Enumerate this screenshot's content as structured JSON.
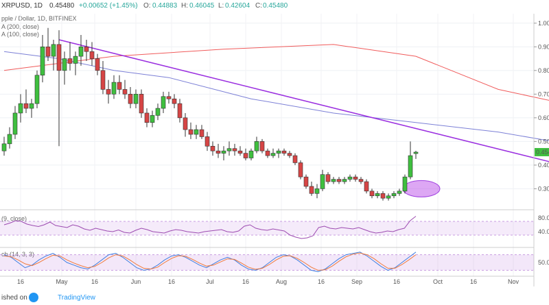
{
  "header": {
    "symbol": "XRPUSD, 1D",
    "price_open": "0.45480",
    "change": "+0.00652 (+1.45%)",
    "o_label": "O:",
    "o_value": "0.44883",
    "h_label": "H:",
    "h_value": "0.46045",
    "l_label": "L:",
    "l_value": "0.42604",
    "c_label": "C:",
    "c_value": "0.45480",
    "legend_title": "pple / Dollar, 1D, BITFINEX",
    "legend_ma200": "A (200, close)",
    "legend_ma100": "A (100, close)",
    "rsi_label": "(9, close)",
    "stoch_label": "ch (14, 3, 3)"
  },
  "footer": {
    "published": "ished on",
    "brand": "TradingView"
  },
  "chart_data": {
    "type": "candlestick",
    "price_scale": {
      "ticks": [
        "1.000",
        "0.900",
        "0.800",
        "0.700",
        "0.600",
        "0.500",
        "0.400",
        "0.300"
      ],
      "last_label": "0.454"
    },
    "x_ticks": [
      "16",
      "May",
      "16",
      "Jun",
      "16",
      "Jul",
      "16",
      "Aug",
      "16",
      "Sep",
      "16",
      "Oct",
      "16",
      "Nov"
    ],
    "candles": [
      [
        0.46,
        0.52,
        0.44,
        0.49
      ],
      [
        0.49,
        0.56,
        0.47,
        0.53
      ],
      [
        0.53,
        0.65,
        0.51,
        0.62
      ],
      [
        0.62,
        0.7,
        0.58,
        0.66
      ],
      [
        0.66,
        0.72,
        0.62,
        0.64
      ],
      [
        0.64,
        0.68,
        0.6,
        0.66
      ],
      [
        0.66,
        0.8,
        0.64,
        0.78
      ],
      [
        0.78,
        0.95,
        0.75,
        0.9
      ],
      [
        0.9,
        0.98,
        0.84,
        0.86
      ],
      [
        0.86,
        0.93,
        0.8,
        0.91
      ],
      [
        0.91,
        0.97,
        0.48,
        0.8
      ],
      [
        0.8,
        0.88,
        0.74,
        0.85
      ],
      [
        0.85,
        0.92,
        0.8,
        0.83
      ],
      [
        0.83,
        0.88,
        0.78,
        0.86
      ],
      [
        0.86,
        0.95,
        0.82,
        0.9
      ],
      [
        0.9,
        0.93,
        0.84,
        0.88
      ],
      [
        0.88,
        0.92,
        0.82,
        0.85
      ],
      [
        0.85,
        0.87,
        0.78,
        0.8
      ],
      [
        0.8,
        0.84,
        0.7,
        0.72
      ],
      [
        0.72,
        0.76,
        0.66,
        0.7
      ],
      [
        0.7,
        0.78,
        0.68,
        0.75
      ],
      [
        0.75,
        0.78,
        0.7,
        0.72
      ],
      [
        0.72,
        0.76,
        0.68,
        0.7
      ],
      [
        0.7,
        0.73,
        0.64,
        0.66
      ],
      [
        0.66,
        0.72,
        0.64,
        0.7
      ],
      [
        0.7,
        0.72,
        0.6,
        0.62
      ],
      [
        0.62,
        0.64,
        0.56,
        0.58
      ],
      [
        0.58,
        0.63,
        0.56,
        0.61
      ],
      [
        0.61,
        0.66,
        0.59,
        0.64
      ],
      [
        0.64,
        0.71,
        0.62,
        0.69
      ],
      [
        0.69,
        0.71,
        0.66,
        0.68
      ],
      [
        0.68,
        0.7,
        0.64,
        0.66
      ],
      [
        0.66,
        0.68,
        0.58,
        0.6
      ],
      [
        0.6,
        0.62,
        0.52,
        0.55
      ],
      [
        0.55,
        0.58,
        0.51,
        0.53
      ],
      [
        0.53,
        0.57,
        0.51,
        0.55
      ],
      [
        0.55,
        0.57,
        0.51,
        0.52
      ],
      [
        0.52,
        0.54,
        0.46,
        0.48
      ],
      [
        0.48,
        0.5,
        0.44,
        0.46
      ],
      [
        0.46,
        0.49,
        0.43,
        0.45
      ],
      [
        0.45,
        0.48,
        0.42,
        0.46
      ],
      [
        0.46,
        0.5,
        0.44,
        0.47
      ],
      [
        0.47,
        0.49,
        0.44,
        0.46
      ],
      [
        0.46,
        0.48,
        0.44,
        0.45
      ],
      [
        0.45,
        0.47,
        0.42,
        0.43
      ],
      [
        0.43,
        0.47,
        0.42,
        0.46
      ],
      [
        0.46,
        0.52,
        0.45,
        0.5
      ],
      [
        0.5,
        0.51,
        0.45,
        0.46
      ],
      [
        0.46,
        0.47,
        0.43,
        0.44
      ],
      [
        0.44,
        0.47,
        0.43,
        0.45
      ],
      [
        0.45,
        0.47,
        0.43,
        0.46
      ],
      [
        0.46,
        0.47,
        0.44,
        0.45
      ],
      [
        0.45,
        0.46,
        0.43,
        0.44
      ],
      [
        0.44,
        0.45,
        0.4,
        0.41
      ],
      [
        0.41,
        0.42,
        0.34,
        0.35
      ],
      [
        0.35,
        0.36,
        0.3,
        0.31
      ],
      [
        0.31,
        0.33,
        0.27,
        0.28
      ],
      [
        0.28,
        0.32,
        0.26,
        0.3
      ],
      [
        0.3,
        0.38,
        0.29,
        0.36
      ],
      [
        0.36,
        0.37,
        0.32,
        0.33
      ],
      [
        0.33,
        0.35,
        0.32,
        0.34
      ],
      [
        0.34,
        0.35,
        0.32,
        0.33
      ],
      [
        0.33,
        0.35,
        0.32,
        0.34
      ],
      [
        0.34,
        0.36,
        0.33,
        0.35
      ],
      [
        0.35,
        0.36,
        0.33,
        0.34
      ],
      [
        0.34,
        0.35,
        0.32,
        0.33
      ],
      [
        0.33,
        0.34,
        0.28,
        0.29
      ],
      [
        0.29,
        0.3,
        0.26,
        0.27
      ],
      [
        0.27,
        0.29,
        0.26,
        0.28
      ],
      [
        0.28,
        0.29,
        0.25,
        0.26
      ],
      [
        0.26,
        0.28,
        0.25,
        0.27
      ],
      [
        0.27,
        0.29,
        0.26,
        0.28
      ],
      [
        0.28,
        0.3,
        0.27,
        0.29
      ],
      [
        0.29,
        0.36,
        0.28,
        0.35
      ],
      [
        0.35,
        0.5,
        0.34,
        0.44
      ],
      [
        0.4488,
        0.4605,
        0.426,
        0.4548
      ]
    ],
    "series": [
      {
        "name": "SMA (200, close)",
        "color": "#f05a5a",
        "x": [
          0,
          20,
          40,
          60,
          75,
          90,
          100,
          110,
          122
        ],
        "y": [
          0.8,
          0.86,
          0.89,
          0.91,
          0.86,
          0.72,
          0.67,
          0.62,
          0.54
        ]
      },
      {
        "name": "SMA (100, close)",
        "color": "#7b7fd6",
        "x": [
          0,
          10,
          20,
          30,
          45,
          60,
          75,
          90,
          100,
          110,
          122
        ],
        "y": [
          0.88,
          0.85,
          0.8,
          0.77,
          0.68,
          0.62,
          0.58,
          0.54,
          0.5,
          0.46,
          0.4
        ]
      }
    ],
    "trendline": {
      "color": "#9b30e0",
      "x": [
        10,
        133
      ],
      "y": [
        0.93,
        0.22
      ]
    },
    "highlights": [
      {
        "x": 76,
        "y": 0.3
      },
      {
        "x": 116,
        "y": 0.28
      }
    ],
    "rsi": {
      "range": [
        0,
        100
      ],
      "ticks": [
        "80.00",
        "40.00"
      ],
      "band": [
        30,
        70
      ],
      "values": [
        60,
        65,
        72,
        70,
        62,
        58,
        55,
        60,
        68,
        58,
        55,
        52,
        60,
        56,
        48,
        44,
        50,
        46,
        42,
        40,
        45,
        38,
        36,
        44,
        50,
        46,
        40,
        38,
        36,
        42,
        46,
        44,
        40,
        38,
        36,
        40,
        42,
        44,
        46,
        40,
        38,
        42,
        56,
        60,
        50,
        46,
        44,
        48,
        45,
        42,
        30,
        24,
        20,
        22,
        28,
        52,
        56,
        50,
        48,
        52,
        50,
        48,
        52,
        46,
        40,
        36,
        38,
        42,
        40,
        46,
        50,
        72,
        85
      ]
    },
    "stochastic": {
      "range": [
        0,
        100
      ],
      "ticks": [
        "50.00"
      ],
      "band": [
        20,
        80
      ],
      "values_k": [
        80,
        70,
        50,
        30,
        40,
        60,
        75,
        85,
        70,
        50,
        40,
        30,
        25,
        40,
        60,
        80,
        85,
        70,
        50,
        30,
        20,
        25,
        40,
        60,
        75,
        80,
        70,
        55,
        40,
        30,
        45,
        60,
        70,
        60,
        40,
        25,
        20,
        30,
        50,
        70,
        80,
        75,
        60,
        40,
        20,
        15,
        25,
        45,
        65,
        80,
        85,
        90,
        75,
        55,
        35,
        20,
        30,
        50,
        70,
        90
      ],
      "values_d": [
        75,
        72,
        60,
        45,
        38,
        50,
        65,
        78,
        75,
        60,
        48,
        38,
        30,
        35,
        50,
        68,
        80,
        75,
        60,
        42,
        28,
        25,
        32,
        50,
        66,
        76,
        74,
        62,
        48,
        36,
        40,
        52,
        64,
        62,
        48,
        32,
        24,
        28,
        42,
        60,
        74,
        76,
        66,
        50,
        32,
        20,
        22,
        36,
        55,
        72,
        82,
        86,
        80,
        65,
        45,
        28,
        28,
        42,
        60,
        80
      ]
    }
  }
}
